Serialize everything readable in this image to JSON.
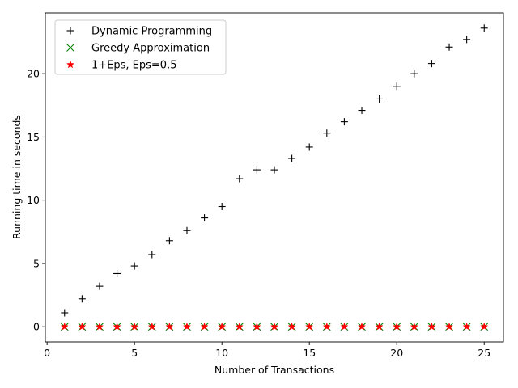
{
  "chart_data": {
    "type": "scatter",
    "title": "",
    "xlabel": "Number of Transactions",
    "ylabel": "Running time in seconds",
    "xlim": [
      -0.1,
      26.1
    ],
    "ylim": [
      -1.2,
      24.8
    ],
    "xticks": [
      0,
      5,
      10,
      15,
      20,
      25
    ],
    "yticks": [
      0,
      5,
      10,
      15,
      20
    ],
    "grid": false,
    "legend_position": "top-left",
    "x": [
      1,
      2,
      3,
      4,
      5,
      6,
      7,
      8,
      9,
      10,
      11,
      12,
      13,
      14,
      15,
      16,
      17,
      18,
      19,
      20,
      21,
      22,
      23,
      24,
      25
    ],
    "series": [
      {
        "name": "Dynamic Programming",
        "marker": "plus",
        "color": "#000000",
        "values": [
          1.1,
          2.2,
          3.2,
          4.2,
          4.8,
          5.7,
          6.8,
          7.6,
          8.6,
          9.5,
          11.7,
          12.4,
          12.4,
          13.3,
          14.2,
          15.3,
          16.2,
          17.1,
          18.0,
          19.0,
          20.0,
          20.8,
          22.1,
          22.7,
          23.6
        ]
      },
      {
        "name": "Greedy Approximation",
        "marker": "x",
        "color": "#008000",
        "values": [
          0,
          0,
          0,
          0,
          0,
          0,
          0,
          0,
          0,
          0,
          0,
          0,
          0,
          0,
          0,
          0,
          0,
          0,
          0,
          0,
          0,
          0,
          0,
          0,
          0
        ]
      },
      {
        "name": "1+Eps, Eps=0.5",
        "marker": "star",
        "color": "#ff0000",
        "values": [
          0,
          0,
          0,
          0,
          0,
          0,
          0,
          0,
          0,
          0,
          0,
          0,
          0,
          0,
          0,
          0,
          0,
          0,
          0,
          0,
          0,
          0,
          0,
          0,
          0
        ]
      }
    ]
  }
}
